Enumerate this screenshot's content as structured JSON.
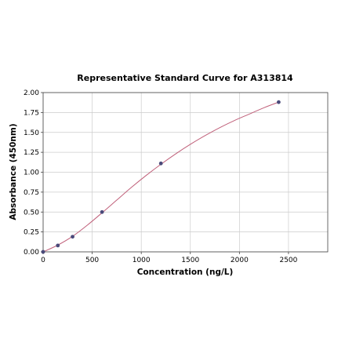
{
  "chart_data": {
    "type": "scatter",
    "title": "Representative Standard Curve for A313814",
    "xlabel": "Concentration (ng/L)",
    "ylabel": "Absorbance (450nm)",
    "xlim": [
      0,
      2900
    ],
    "ylim": [
      0,
      2.0
    ],
    "xticks": [
      0,
      500,
      1000,
      1500,
      2000,
      2500
    ],
    "yticks": [
      0.0,
      0.25,
      0.5,
      0.75,
      1.0,
      1.25,
      1.5,
      1.75,
      2.0
    ],
    "xtick_labels": [
      "0",
      "500",
      "1000",
      "1500",
      "2000",
      "2500"
    ],
    "ytick_labels": [
      "0.00",
      "0.25",
      "0.50",
      "0.75",
      "1.00",
      "1.25",
      "1.50",
      "1.75",
      "2.00"
    ],
    "grid": true,
    "points": {
      "x": [
        0,
        150,
        300,
        600,
        1200,
        2400
      ],
      "y": [
        0.0,
        0.08,
        0.19,
        0.5,
        1.11,
        1.88
      ]
    },
    "fit_curve": {
      "x": [
        0,
        150,
        300,
        450,
        600,
        750,
        900,
        1050,
        1200,
        1350,
        1500,
        1650,
        1800,
        1950,
        2100,
        2250,
        2400
      ],
      "y": [
        0.0,
        0.085,
        0.195,
        0.335,
        0.49,
        0.65,
        0.81,
        0.96,
        1.1,
        1.23,
        1.35,
        1.46,
        1.56,
        1.65,
        1.73,
        1.81,
        1.88
      ]
    },
    "colors": {
      "points": "#4a4a7a",
      "curve": "#c0607a"
    }
  }
}
